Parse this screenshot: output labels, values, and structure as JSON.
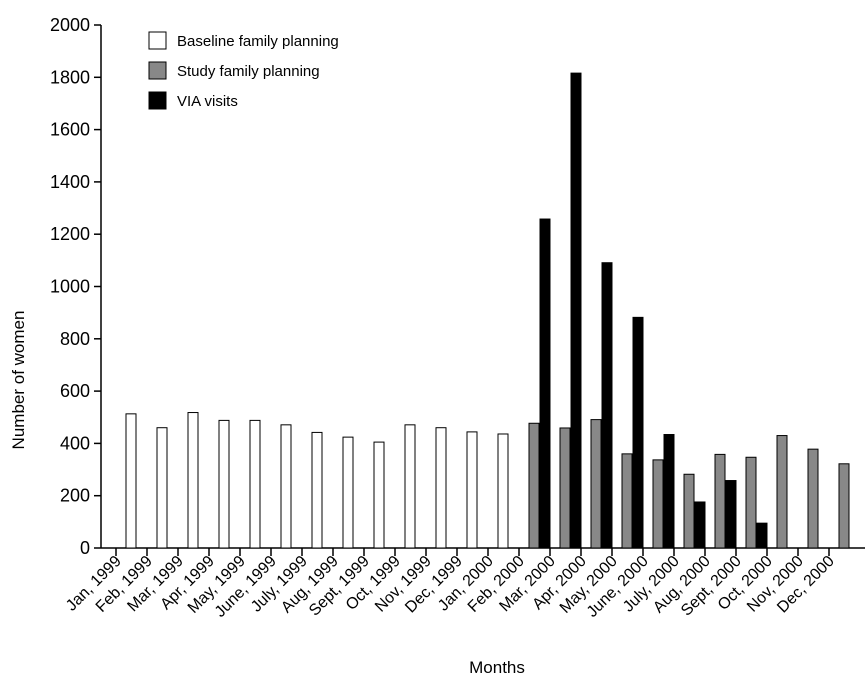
{
  "chart_data": {
    "type": "bar",
    "xlabel": "Months",
    "ylabel": "Number of women",
    "ylim": [
      0,
      2000
    ],
    "yticks": [
      0,
      200,
      400,
      600,
      800,
      1000,
      1200,
      1400,
      1600,
      1800,
      2000
    ],
    "categories": [
      "Jan, 1999",
      "Feb, 1999",
      "Mar, 1999",
      "Apr, 1999",
      "May, 1999",
      "June, 1999",
      "July, 1999",
      "Aug, 1999",
      "Sept, 1999",
      "Oct, 1999",
      "Nov, 1999",
      "Dec, 1999",
      "Jan, 2000",
      "Feb, 2000",
      "Mar, 2000",
      "Apr, 2000",
      "May, 2000",
      "June, 2000",
      "July, 2000",
      "Aug, 2000",
      "Sept, 2000",
      "Oct, 2000",
      "Nov, 2000",
      "Dec, 2000"
    ],
    "series": [
      {
        "name": "Baseline family planning",
        "color": "#ffffff",
        "values": [
          513,
          460,
          518,
          488,
          488,
          471,
          442,
          424,
          405,
          471,
          460,
          444,
          436,
          null,
          null,
          null,
          null,
          null,
          null,
          null,
          null,
          null,
          null,
          null
        ]
      },
      {
        "name": "Study family planning",
        "color": "#888888",
        "values": [
          null,
          null,
          null,
          null,
          null,
          null,
          null,
          null,
          null,
          null,
          null,
          null,
          null,
          477,
          459,
          491,
          360,
          337,
          282,
          358,
          347,
          430,
          378,
          322
        ]
      },
      {
        "name": "VIA visits",
        "color": "#000000",
        "values": [
          null,
          null,
          null,
          null,
          null,
          null,
          null,
          null,
          null,
          null,
          null,
          null,
          null,
          1258,
          1816,
          1091,
          882,
          434,
          176,
          258,
          95,
          null,
          null,
          null
        ]
      }
    ],
    "legend_position": "top-left",
    "grid": false
  }
}
